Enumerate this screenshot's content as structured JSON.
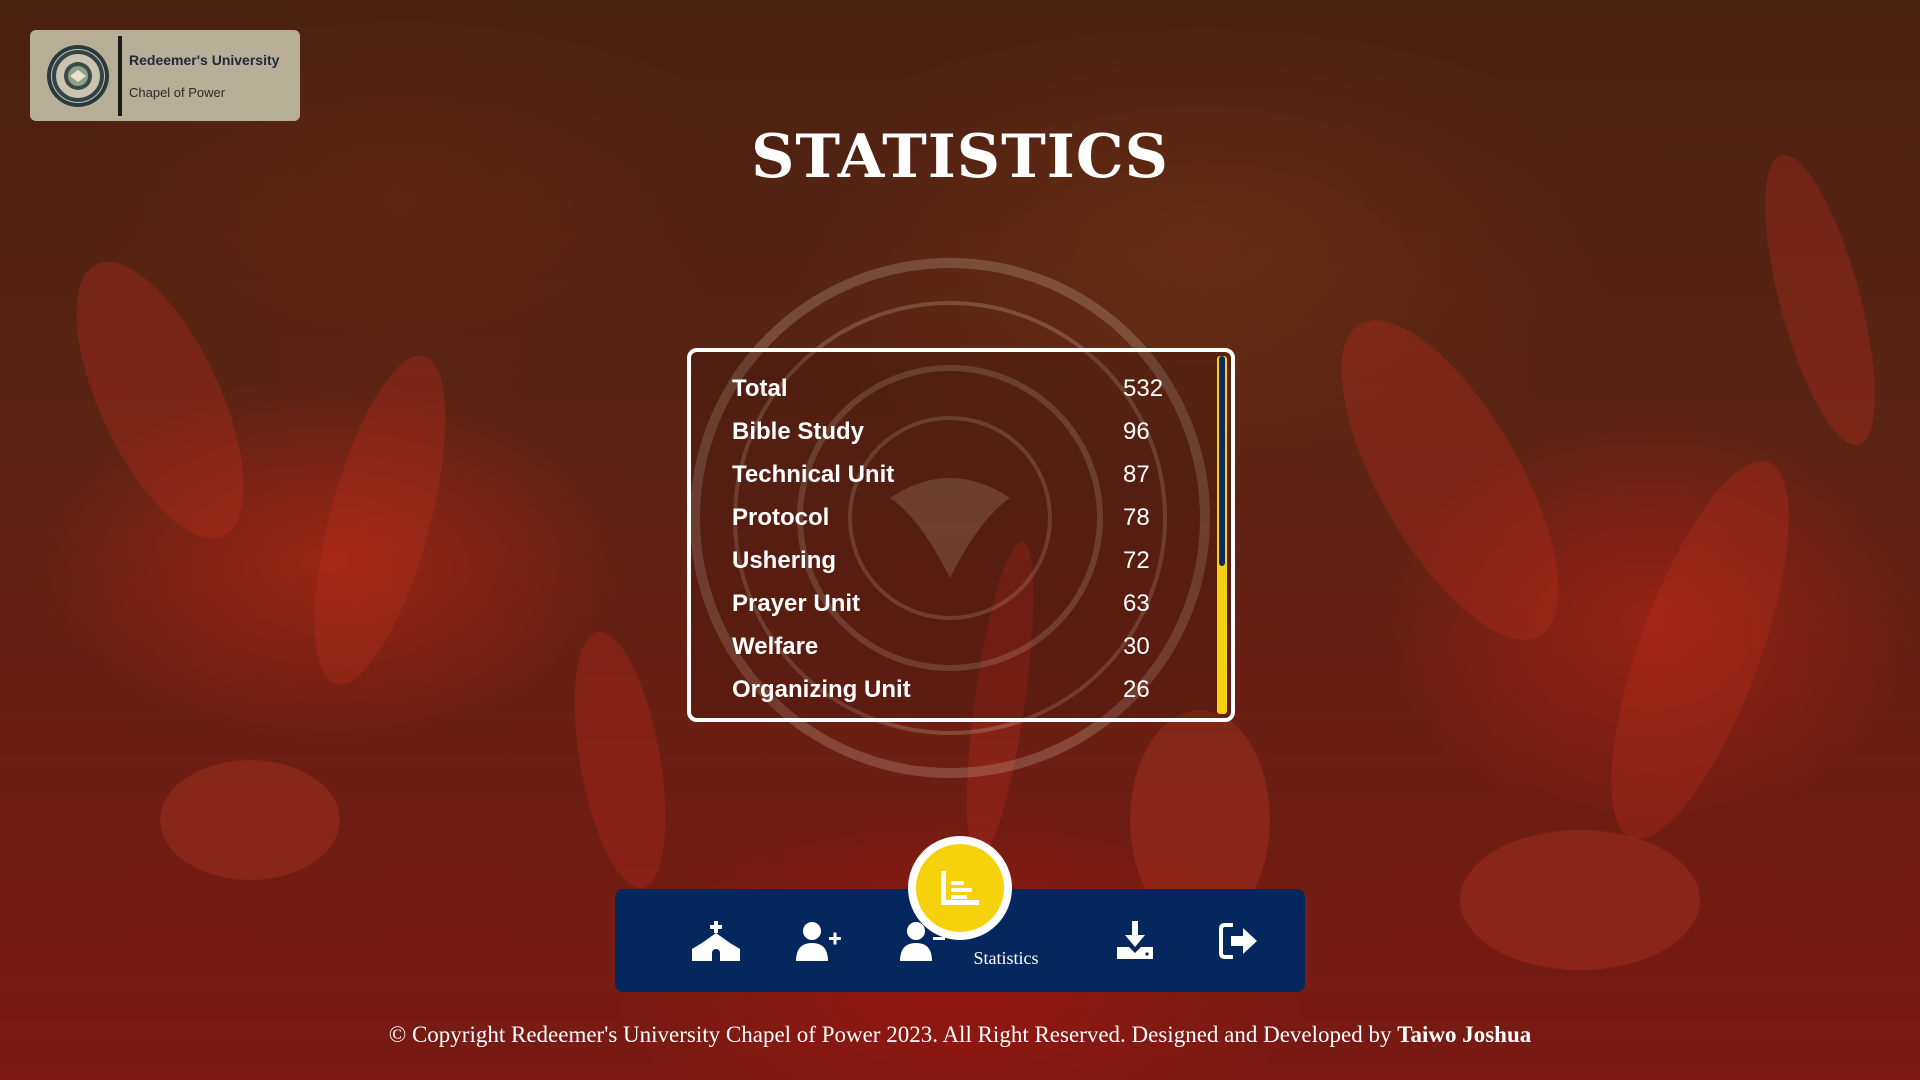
{
  "brand": {
    "name": "Redeemer's University",
    "subtitle": "Chapel of Power"
  },
  "page": {
    "title": "STATISTICS"
  },
  "stats": [
    {
      "label": "Total",
      "value": "532"
    },
    {
      "label": "Bible Study",
      "value": "96"
    },
    {
      "label": "Technical Unit",
      "value": "87"
    },
    {
      "label": "Protocol",
      "value": "78"
    },
    {
      "label": "Ushering",
      "value": "72"
    },
    {
      "label": "Prayer Unit",
      "value": "63"
    },
    {
      "label": "Welfare",
      "value": "30"
    },
    {
      "label": "Organizing Unit",
      "value": "26"
    }
  ],
  "nav": {
    "items": [
      {
        "icon": "church-icon"
      },
      {
        "icon": "add-user-icon"
      },
      {
        "icon": "remove-user-icon"
      },
      {
        "icon": "statistics-icon",
        "label": "Statistics",
        "active": true
      },
      {
        "icon": "download-icon"
      },
      {
        "icon": "logout-icon"
      }
    ]
  },
  "footer": {
    "text": "© Copyright Redeemer's University Chapel of Power 2023. All Right Reserved. Designed and Developed by ",
    "author": "Taiwo Joshua"
  },
  "colors": {
    "nav_bg": "#04275e",
    "accent_yellow": "#f6d20c",
    "text": "#ffffff"
  }
}
